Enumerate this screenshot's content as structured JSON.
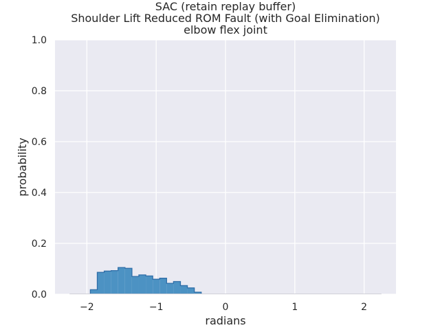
{
  "chart_data": {
    "type": "bar",
    "title_lines": [
      "SAC (retain replay buffer)",
      "Shoulder Lift Reduced ROM Fault (with Goal Elimination)",
      "elbow flex joint"
    ],
    "xlabel": "radians",
    "ylabel": "probability",
    "xlim": [
      -2.46,
      2.46
    ],
    "ylim": [
      0,
      1.0
    ],
    "xticks": [
      -2,
      -1,
      0,
      1,
      2
    ],
    "xtick_labels": [
      "−2",
      "−1",
      "0",
      "1",
      "2"
    ],
    "yticks": [
      0.0,
      0.2,
      0.4,
      0.6,
      0.8,
      1.0
    ],
    "ytick_labels": [
      "0.0",
      "0.2",
      "0.4",
      "0.6",
      "0.8",
      "1.0"
    ],
    "grid": true,
    "baseline_range": [
      -2.25,
      2.25
    ],
    "bin_edges": [
      -1.95,
      -1.85,
      -1.75,
      -1.65,
      -1.55,
      -1.45,
      -1.35,
      -1.25,
      -1.15,
      -1.05,
      -0.95,
      -0.85,
      -0.75,
      -0.65,
      -0.55,
      -0.45,
      -0.35
    ],
    "values": [
      0.018,
      0.086,
      0.091,
      0.093,
      0.105,
      0.102,
      0.07,
      0.076,
      0.072,
      0.059,
      0.063,
      0.043,
      0.05,
      0.034,
      0.025,
      0.008
    ],
    "color": "#4c92c3",
    "edge_color": "#2f6ea8",
    "background": "#eaeaf2"
  }
}
